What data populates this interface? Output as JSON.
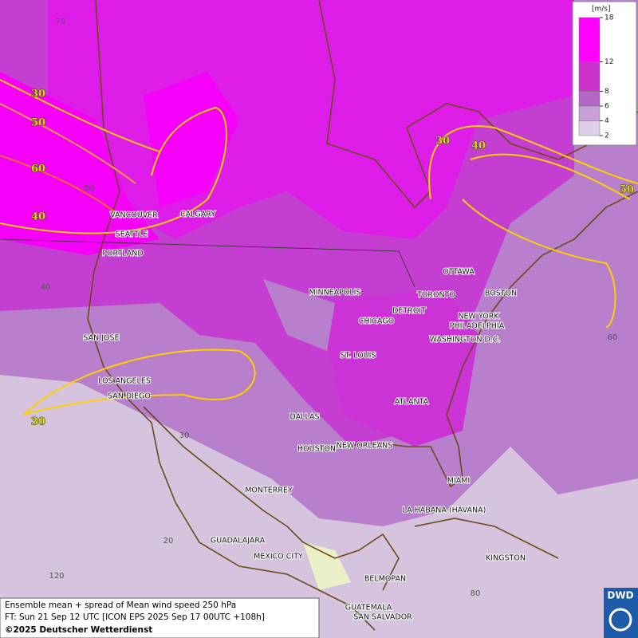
{
  "legend": {
    "unit": "[m/s]",
    "ticks": [
      18,
      12,
      8,
      6,
      4,
      2
    ]
  },
  "contour_labels": [
    "30",
    "50",
    "60",
    "40",
    "30",
    "30",
    "40",
    "50"
  ],
  "graticule_labels": [
    "70",
    "50",
    "40",
    "30",
    "20",
    "120",
    "60",
    "80"
  ],
  "cities": [
    "VANCOUVER",
    "CALGARY",
    "SEATTLE",
    "PORTLAND",
    "SAN JOSE",
    "LOS ANGELES",
    "SAN DIEGO",
    "MINNEAPOLIS",
    "TORONTO",
    "OTTAWA",
    "BOSTON",
    "DETROIT",
    "CHICAGO",
    "NEW YORK",
    "PHILADELPHIA",
    "WASHINGTON D.C.",
    "ST. LOUIS",
    "ATLANTA",
    "DALLAS",
    "HOUSTON",
    "NEW ORLEANS",
    "MIAMI",
    "MONTERREY",
    "LA HABANA (HAVANA)",
    "GUADALAJARA",
    "MEXICO CITY",
    "KINGSTON",
    "BELMOPAN",
    "GUATEMALA",
    "SAN SALVADOR"
  ],
  "footer": {
    "line1": "Ensemble mean + spread of Mean wind speed 250 hPa",
    "line2": "FT: Sun 21 Sep 12 UTC [ICON EPS 2025 Sep 17 00UTC +108h]",
    "line3": "©2025 Deutscher Wetterdienst"
  },
  "logo": "DWD"
}
